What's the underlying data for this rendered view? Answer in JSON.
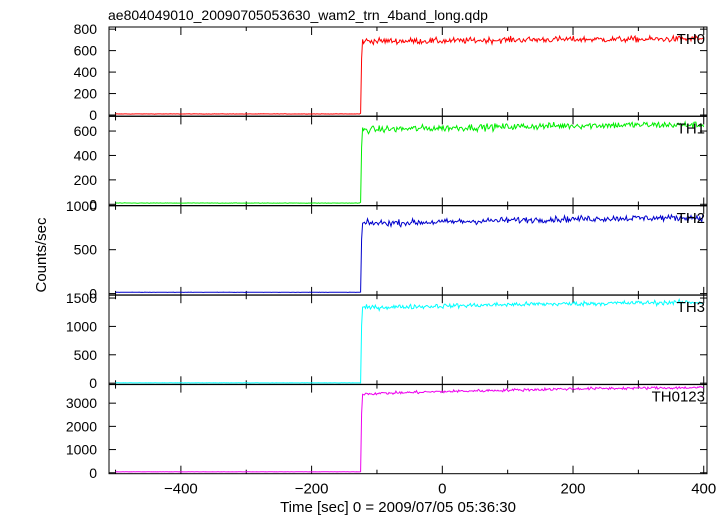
{
  "chart_data": {
    "type": "line",
    "title": "ae804049010_20090705053630_wam2_trn_4band_long.qdp",
    "xlabel": "Time [sec] 0 = 2009/07/05 05:36:30",
    "ylabel": "Counts/sec",
    "xlim": [
      -510,
      405
    ],
    "xticks": [
      -400,
      -200,
      0,
      200,
      400
    ],
    "trigger_time": -123,
    "grid": false,
    "panels": [
      {
        "name": "TH0",
        "color": "#ff0000",
        "ylim": [
          -10,
          820
        ],
        "yticks": [
          0,
          200,
          400,
          600,
          800
        ],
        "points": [
          [
            -500,
            10
          ],
          [
            -300,
            10
          ],
          [
            -125,
            10
          ],
          [
            -123,
            690
          ],
          [
            0,
            690
          ],
          [
            100,
            700
          ],
          [
            200,
            705
          ],
          [
            300,
            705
          ],
          [
            400,
            710
          ]
        ],
        "noise": 28
      },
      {
        "name": "TH1",
        "color": "#00ee00",
        "ylim": [
          -10,
          720
        ],
        "yticks": [
          0,
          200,
          400,
          600
        ],
        "points": [
          [
            -500,
            10
          ],
          [
            -300,
            10
          ],
          [
            -125,
            10
          ],
          [
            -123,
            610
          ],
          [
            0,
            625
          ],
          [
            100,
            635
          ],
          [
            200,
            645
          ],
          [
            300,
            650
          ],
          [
            400,
            650
          ]
        ],
        "noise": 28
      },
      {
        "name": "TH2",
        "color": "#0000cc",
        "ylim": [
          -15,
          1000
        ],
        "yticks": [
          0,
          500,
          1000
        ],
        "points": [
          [
            -500,
            15
          ],
          [
            -300,
            15
          ],
          [
            -125,
            15
          ],
          [
            -123,
            800
          ],
          [
            0,
            815
          ],
          [
            100,
            835
          ],
          [
            200,
            850
          ],
          [
            300,
            860
          ],
          [
            400,
            865
          ]
        ],
        "noise": 35
      },
      {
        "name": "TH3",
        "color": "#00ffff",
        "ylim": [
          -20,
          1550
        ],
        "yticks": [
          0,
          500,
          1000,
          1500
        ],
        "points": [
          [
            -500,
            5
          ],
          [
            -300,
            5
          ],
          [
            -125,
            5
          ],
          [
            -123,
            1330
          ],
          [
            0,
            1360
          ],
          [
            100,
            1385
          ],
          [
            200,
            1400
          ],
          [
            300,
            1415
          ],
          [
            400,
            1425
          ]
        ],
        "noise": 40
      },
      {
        "name": "TH0123",
        "color": "#ee00ee",
        "ylim": [
          -40,
          3800
        ],
        "yticks": [
          0,
          1000,
          2000,
          3000
        ],
        "points": [
          [
            -500,
            40
          ],
          [
            -300,
            40
          ],
          [
            -125,
            40
          ],
          [
            -123,
            3400
          ],
          [
            0,
            3500
          ],
          [
            100,
            3560
          ],
          [
            200,
            3620
          ],
          [
            300,
            3650
          ],
          [
            400,
            3670
          ]
        ],
        "noise": 60
      }
    ]
  }
}
